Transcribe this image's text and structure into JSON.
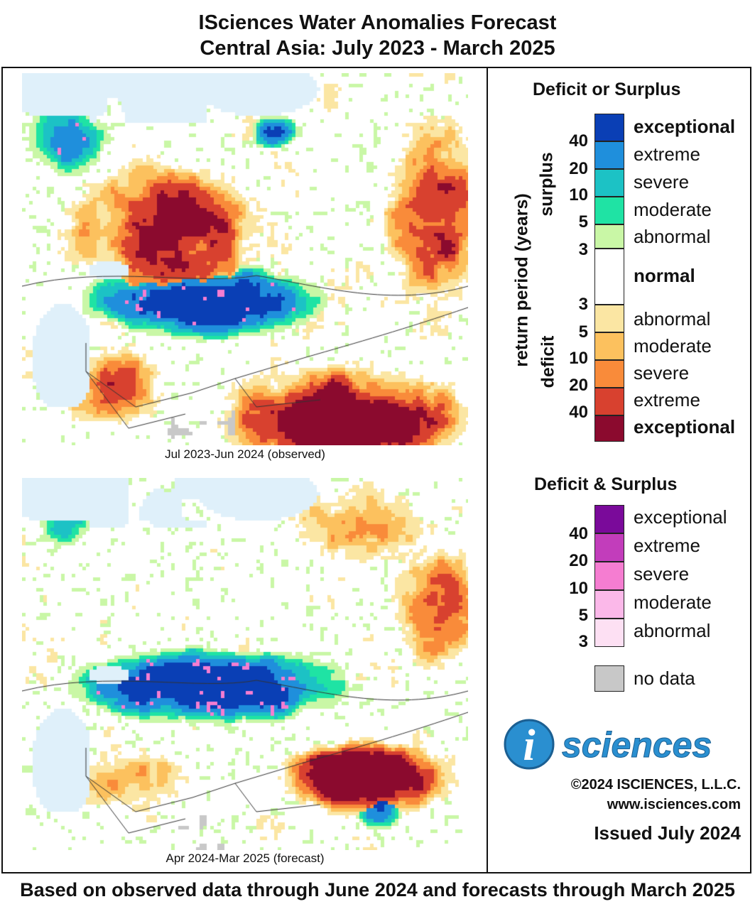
{
  "title": {
    "line1": "ISciences Water Anomalies Forecast",
    "line2": "Central Asia: July 2023 - March 2025"
  },
  "maps": [
    {
      "caption": "Jul 2023-Jun 2024 (observed)",
      "seed": 7
    },
    {
      "caption": "Apr 2024-Mar 2025 (forecast)",
      "seed": 19
    }
  ],
  "legend_ds": {
    "title": "Deficit or Surplus",
    "axis_label": "return period (years)",
    "surplus_label": "surplus",
    "deficit_label": "deficit",
    "items": [
      {
        "label": "exceptional",
        "color": "#0a3fb5",
        "bold": true
      },
      {
        "label": "extreme",
        "color": "#1f8fdc",
        "bold": false
      },
      {
        "label": "severe",
        "color": "#1cc2c5",
        "bold": false
      },
      {
        "label": "moderate",
        "color": "#1fe3a4",
        "bold": false
      },
      {
        "label": "abnormal",
        "color": "#c9f7a6",
        "bold": false
      },
      {
        "label": "normal",
        "color": "#ffffff",
        "bold": true
      },
      {
        "label": "abnormal",
        "color": "#fbe6a3",
        "bold": false
      },
      {
        "label": "moderate",
        "color": "#fcc15e",
        "bold": false
      },
      {
        "label": "severe",
        "color": "#f98b3a",
        "bold": false
      },
      {
        "label": "extreme",
        "color": "#d8412f",
        "bold": false
      },
      {
        "label": "exceptional",
        "color": "#8b0a2e",
        "bold": true
      }
    ],
    "surplus_numbers": [
      "40",
      "20",
      "10",
      "5",
      "3"
    ],
    "deficit_numbers": [
      "3",
      "5",
      "10",
      "20",
      "40"
    ]
  },
  "legend_both": {
    "title": "Deficit & Surplus",
    "items": [
      {
        "label": "exceptional",
        "color": "#7a0a9a"
      },
      {
        "label": "extreme",
        "color": "#c23dbb"
      },
      {
        "label": "severe",
        "color": "#f57dd1"
      },
      {
        "label": "moderate",
        "color": "#fbb8e9"
      },
      {
        "label": "abnormal",
        "color": "#fde0f3"
      }
    ],
    "numbers": [
      "40",
      "20",
      "10",
      "5",
      "3"
    ]
  },
  "no_data": {
    "label": "no data",
    "color": "#c8c8c8"
  },
  "logo": {
    "letter": "i",
    "word": "sciences",
    "color": "#2a8fd0"
  },
  "copyright": "©2024 ISCIENCES, L.L.C.",
  "website": "www.isciences.com",
  "issued": "Issued July 2024",
  "footer": "Based on observed data through June 2024 and forecasts through March 2025"
}
